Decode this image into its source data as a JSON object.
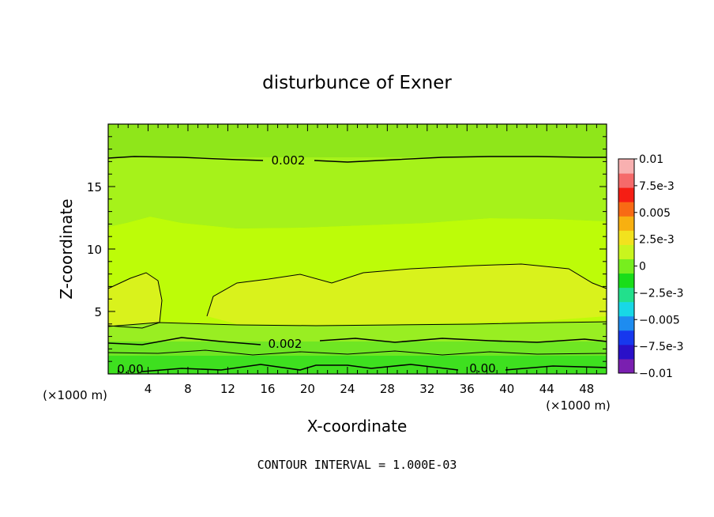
{
  "chart_data": {
    "type": "heatmap",
    "title": "disturbunce of Exner",
    "xlabel": "X-coordinate",
    "ylabel": "Z-coordinate",
    "x_unit": "(×1000 m)",
    "y_unit": "(×1000 m)",
    "xlim": [
      0,
      50
    ],
    "ylim": [
      0,
      20
    ],
    "x_ticks": [
      "4",
      "8",
      "12",
      "16",
      "20",
      "24",
      "28",
      "32",
      "36",
      "40",
      "44",
      "48"
    ],
    "y_ticks": [
      "5",
      "10",
      "15"
    ],
    "colorbar": {
      "labels": [
        "0.01",
        "7.5e-3",
        "0.005",
        "2.5e-3",
        "0",
        "−2.5e-3",
        "−0.005",
        "−7.5e-3",
        "−0.01"
      ],
      "range": [
        -0.01,
        0.01
      ]
    },
    "contour_labels": [
      {
        "text": "0.002",
        "x": 21.5,
        "z": 17.3
      },
      {
        "text": "0.002",
        "x": 21.0,
        "z": 2.5
      },
      {
        "text": "0.00",
        "x": 2.5,
        "z": 0.3
      },
      {
        "text": "0.00",
        "x": 37.5,
        "z": 0.4
      }
    ],
    "footer": "CONTOUR INTERVAL = 1.000E-03",
    "bands_description": [
      {
        "z_range": [
          0,
          1
        ],
        "value": 0.0,
        "color": "#33dd22"
      },
      {
        "z_range": [
          1,
          3.2
        ],
        "value": 0.001,
        "color": "#66ee22"
      },
      {
        "z_range": [
          3.2,
          8.5
        ],
        "value": 0.003,
        "color": "#ddf022"
      },
      {
        "z_range": [
          8.5,
          12.3
        ],
        "value": 0.0025,
        "color": "#bbff00"
      },
      {
        "z_range": [
          12.3,
          17.3
        ],
        "value": 0.0018,
        "color": "#a8f51a"
      },
      {
        "z_range": [
          17.3,
          20
        ],
        "value": 0.0015,
        "color": "#99ee22"
      }
    ]
  }
}
